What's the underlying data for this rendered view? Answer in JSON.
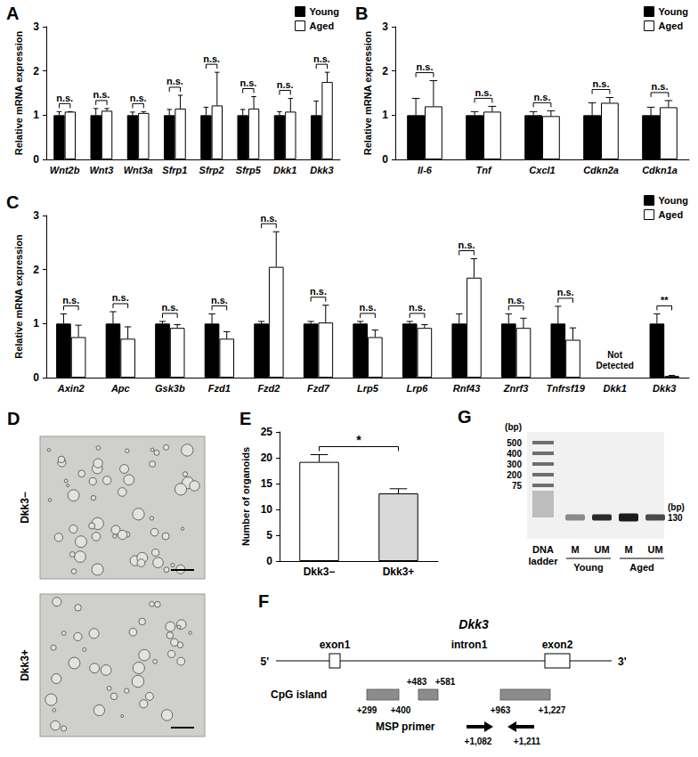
{
  "chart_data": [
    {
      "panel": "A",
      "type": "bar",
      "categories": [
        "Wnt2b",
        "Wnt3",
        "Wnt3a",
        "Sfrp1",
        "Sfrp2",
        "Sfrp5",
        "Dkk1",
        "Dkk3"
      ],
      "series": [
        {
          "name": "Young",
          "color": "#000000",
          "values": [
            1,
            1,
            1,
            1,
            1,
            1,
            1,
            1
          ],
          "errors": [
            0.08,
            0.15,
            0.07,
            0.13,
            0.18,
            0.13,
            0.08,
            0.32
          ]
        },
        {
          "name": "Aged",
          "color": "#ffffff",
          "values": [
            1.08,
            1.1,
            1.05,
            1.15,
            1.22,
            1.15,
            1.08,
            1.75
          ],
          "errors": [
            0,
            0.05,
            0.03,
            0.3,
            0.75,
            0.27,
            0.3,
            0.22
          ]
        }
      ],
      "y_label": "Relative mRNA expression",
      "ylim": [
        0,
        3
      ],
      "yticks": [
        0,
        1,
        2,
        3
      ],
      "significance": [
        "n.s.",
        "n.s.",
        "n.s.",
        "n.s.",
        "n.s.",
        "n.s.",
        "n.s.",
        "n.s."
      ],
      "legend": "top-right",
      "grid": false
    },
    {
      "panel": "B",
      "type": "bar",
      "categories": [
        "Il-6",
        "Tnf",
        "Cxcl1",
        "Cdkn2a",
        "Cdkn1a"
      ],
      "series": [
        {
          "name": "Young",
          "color": "#000000",
          "values": [
            1,
            1,
            1,
            1,
            1
          ],
          "errors": [
            0.38,
            0.08,
            0.08,
            0.28,
            0.18
          ]
        },
        {
          "name": "Aged",
          "color": "#ffffff",
          "values": [
            1.2,
            1.08,
            0.98,
            1.28,
            1.18
          ],
          "errors": [
            0.58,
            0.12,
            0.12,
            0.12,
            0.15
          ]
        }
      ],
      "y_label": "Relative mRNA expression",
      "ylim": [
        0,
        3
      ],
      "yticks": [
        0,
        1,
        2,
        3
      ],
      "significance": [
        "n.s.",
        "n.s.",
        "n.s.",
        "n.s.",
        "n.s."
      ],
      "legend": "top-right",
      "grid": false
    },
    {
      "panel": "C",
      "type": "bar",
      "categories": [
        "Axin2",
        "Apc",
        "Gsk3b",
        "Fzd1",
        "Fzd2",
        "Fzd7",
        "Lrp5",
        "Lrp6",
        "Rnf43",
        "Znrf3",
        "Tnfrsf19",
        "Dkk1",
        "Dkk3"
      ],
      "series": [
        {
          "name": "Young",
          "color": "#000000",
          "values": [
            1,
            1,
            1,
            1,
            1,
            1,
            1,
            1,
            1,
            1,
            1,
            null,
            1
          ],
          "errors": [
            0.18,
            0.22,
            0.04,
            0.18,
            0.04,
            0.04,
            0.04,
            0.04,
            0.18,
            0.18,
            0.32,
            null,
            0.18
          ]
        },
        {
          "name": "Aged",
          "color": "#ffffff",
          "values": [
            0.75,
            0.72,
            0.92,
            0.72,
            2.05,
            1.02,
            0.75,
            0.92,
            1.85,
            0.92,
            0.7,
            null,
            0.03
          ],
          "errors": [
            0.22,
            0.22,
            0.06,
            0.13,
            0.65,
            0.32,
            0.13,
            0.06,
            0.35,
            0.18,
            0.22,
            null,
            0.01
          ]
        }
      ],
      "y_label": "Relative mRNA expression",
      "ylim": [
        0,
        3
      ],
      "yticks": [
        0,
        1,
        2,
        3
      ],
      "significance": [
        "n.s.",
        "n.s.",
        "n.s.",
        "n.s.",
        "n.s.",
        "n.s.",
        "n.s.",
        "n.s.",
        "n.s.",
        "n.s.",
        "n.s.",
        null,
        "**"
      ],
      "annotations": [
        {
          "category": "Dkk1",
          "text": "Not Detected"
        }
      ],
      "legend": "top-right",
      "grid": false
    },
    {
      "panel": "E",
      "type": "bar",
      "categories": [
        "Dkk3−",
        "Dkk3+"
      ],
      "values": [
        19.2,
        13.1
      ],
      "errors": [
        1.4,
        0.9
      ],
      "colors": [
        "#ffffff",
        "#d9d9d9"
      ],
      "y_label": "Number of organoids",
      "ylim": [
        0,
        25
      ],
      "yticks": [
        0,
        5,
        10,
        15,
        20,
        25
      ],
      "significance": [
        {
          "from": "Dkk3−",
          "to": "Dkk3+",
          "label": "*"
        }
      ],
      "grid": false
    }
  ],
  "images": {
    "panel": "D",
    "labels": [
      "Dkk3−",
      "Dkk3+"
    ]
  },
  "diagram": {
    "panel": "F",
    "title": "Dkk3",
    "ends": [
      "5'",
      "3'"
    ],
    "features": [
      "exon1",
      "intron1",
      "exon2"
    ],
    "cpg_label": "CpG island",
    "cpg_islands": [
      [
        "+299",
        "+400"
      ],
      [
        "+483",
        "+581"
      ],
      [
        "+963",
        "+1,227"
      ]
    ],
    "primer_label": "MSP primer",
    "primers": [
      "+1,082",
      "+1,211"
    ]
  },
  "gel": {
    "panel": "G",
    "unit": "(bp)",
    "ladder": [
      "500",
      "400",
      "300",
      "200",
      "75"
    ],
    "ladder_label": "DNA ladder",
    "lanes": [
      "M",
      "UM",
      "M",
      "UM"
    ],
    "groups": [
      "Young",
      "Aged"
    ],
    "band_size": "130"
  }
}
